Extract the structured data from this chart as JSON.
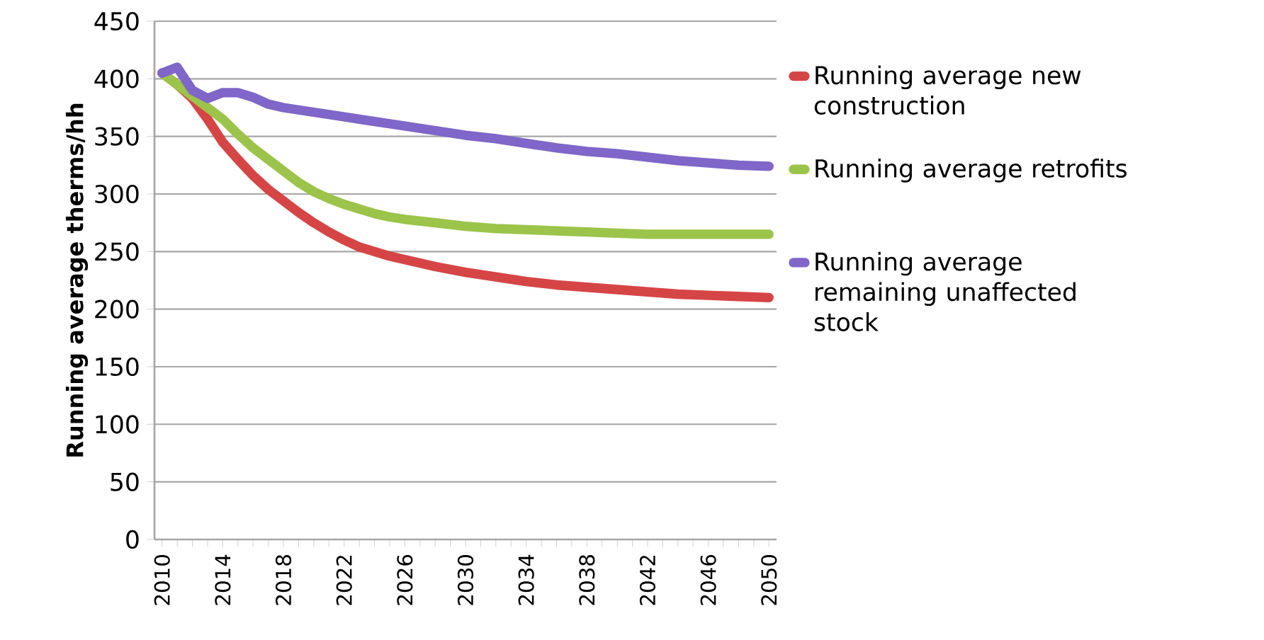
{
  "chart_data": {
    "type": "line",
    "ylabel": "Running average therms/hh",
    "xlim": [
      2009.5,
      2050.5
    ],
    "ylim": [
      0,
      450
    ],
    "yticks": [
      0,
      50,
      100,
      150,
      200,
      250,
      300,
      350,
      400,
      450
    ],
    "xticks": [
      2010,
      {
        "value": 2011,
        "label": null
      },
      {
        "value": 2012,
        "label": null
      },
      {
        "value": 2013,
        "label": null
      },
      2014,
      {
        "value": 2015,
        "label": null
      },
      {
        "value": 2016,
        "label": null
      },
      {
        "value": 2017,
        "label": null
      },
      2018,
      {
        "value": 2019,
        "label": null
      },
      {
        "value": 2020,
        "label": null
      },
      {
        "value": 2021,
        "label": null
      },
      2022,
      {
        "value": 2023,
        "label": null
      },
      {
        "value": 2024,
        "label": null
      },
      {
        "value": 2025,
        "label": null
      },
      2026,
      {
        "value": 2027,
        "label": null
      },
      {
        "value": 2028,
        "label": null
      },
      {
        "value": 2029,
        "label": null
      },
      2030,
      {
        "value": 2031,
        "label": null
      },
      {
        "value": 2032,
        "label": null
      },
      {
        "value": 2033,
        "label": null
      },
      2034,
      {
        "value": 2035,
        "label": null
      },
      {
        "value": 2036,
        "label": null
      },
      {
        "value": 2037,
        "label": null
      },
      2038,
      {
        "value": 2039,
        "label": null
      },
      {
        "value": 2040,
        "label": null
      },
      {
        "value": 2041,
        "label": null
      },
      2042,
      {
        "value": 2043,
        "label": null
      },
      {
        "value": 2044,
        "label": null
      },
      {
        "value": 2045,
        "label": null
      },
      2046,
      {
        "value": 2047,
        "label": null
      },
      {
        "value": 2048,
        "label": null
      },
      {
        "value": 2049,
        "label": null
      },
      2050
    ],
    "grid": "y",
    "legend": "right",
    "marker": "none",
    "line_style": "solid",
    "series": [
      {
        "name": "Running average new construction",
        "color": "#d64545",
        "x": [
          2010,
          2011,
          2012,
          2013,
          2014,
          2015,
          2016,
          2017,
          2018,
          2019,
          2020,
          2021,
          2022,
          2023,
          2024,
          2025,
          2026,
          2028,
          2030,
          2032,
          2034,
          2036,
          2038,
          2040,
          2042,
          2044,
          2046,
          2048,
          2050
        ],
        "values": [
          405,
          395,
          383,
          365,
          345,
          330,
          316,
          304,
          294,
          284,
          275,
          267,
          260,
          254,
          250,
          246,
          243,
          237,
          232,
          228,
          224,
          221,
          219,
          217,
          215,
          213,
          212,
          211,
          210
        ]
      },
      {
        "name": "Running average retrofits",
        "color": "#9cc44a",
        "x": [
          2010,
          2011,
          2012,
          2013,
          2014,
          2015,
          2016,
          2017,
          2018,
          2019,
          2020,
          2021,
          2022,
          2023,
          2024,
          2025,
          2026,
          2028,
          2030,
          2032,
          2034,
          2036,
          2038,
          2040,
          2042,
          2046,
          2050
        ],
        "values": [
          405,
          395,
          385,
          375,
          365,
          352,
          340,
          330,
          320,
          310,
          302,
          296,
          291,
          287,
          283,
          280,
          278,
          275,
          272,
          270,
          269,
          268,
          267,
          266,
          265,
          265,
          265
        ]
      },
      {
        "name": "Running average remaining unaffected stock",
        "color": "#7f66c8",
        "x": [
          2010,
          2011,
          2012,
          2013,
          2014,
          2015,
          2016,
          2017,
          2018,
          2020,
          2022,
          2024,
          2026,
          2028,
          2030,
          2032,
          2034,
          2036,
          2038,
          2040,
          2042,
          2044,
          2046,
          2048,
          2050
        ],
        "values": [
          405,
          410,
          390,
          383,
          388,
          388,
          384,
          378,
          375,
          371,
          367,
          363,
          359,
          355,
          351,
          348,
          344,
          340,
          337,
          335,
          332,
          329,
          327,
          325,
          324
        ]
      }
    ]
  }
}
